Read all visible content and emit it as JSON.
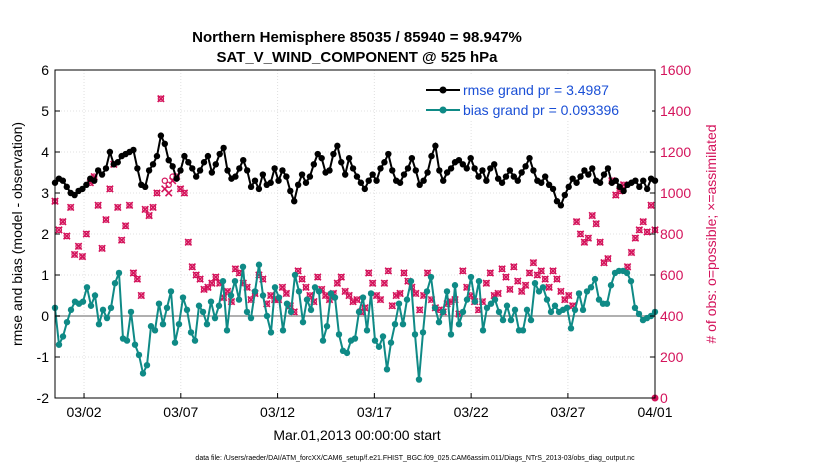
{
  "chart_data": {
    "type": "line",
    "title": "Northern Hemisphere 85035 / 85940 = 98.947%",
    "subtitle": "SAT_V_WIND_COMPONENT @ 525 hPa",
    "xlabel": "Mar.01,2013 00:00:00 start",
    "ylabel": "rmse and bias (model - observation)",
    "y2label": "# of obs: o=possible; ×=assimilated",
    "ylim": [
      -2,
      6
    ],
    "y2lim": [
      0,
      1600
    ],
    "xlim": [
      0,
      31
    ],
    "x_tick_labels": [
      "03/02",
      "03/07",
      "03/12",
      "03/17",
      "03/22",
      "03/27",
      "04/01"
    ],
    "x_tick_values": [
      1.5,
      6.5,
      11.5,
      16.5,
      21.5,
      26.5,
      31
    ],
    "y_ticks": [
      "-2",
      "-1",
      "0",
      "1",
      "2",
      "3",
      "4",
      "5",
      "6"
    ],
    "y2_ticks": [
      "0",
      "200",
      "400",
      "600",
      "800",
      "1000",
      "1200",
      "1400",
      "1600"
    ],
    "footnote": "data file: /Users/raeder/DAI/ATM_forcXX/CAM6_setup/f.e21.FHIST_BGC.f09_025.CAM6assim.011/Diags_NTrS_2013-03/obs_diag_output.nc",
    "series": [
      {
        "name": "rmse grand pr = 3.4987",
        "color": "#000000",
        "axis": "left",
        "values": [
          3.25,
          3.35,
          3.3,
          3.15,
          3.0,
          2.95,
          3.05,
          3.1,
          3.2,
          3.35,
          3.3,
          3.55,
          3.45,
          3.6,
          4.0,
          3.7,
          3.75,
          3.9,
          3.95,
          4.0,
          4.05,
          3.6,
          3.2,
          3.15,
          3.55,
          3.7,
          3.9,
          4.4,
          4.2,
          3.8,
          3.65,
          3.35,
          3.55,
          3.9,
          3.75,
          3.6,
          3.4,
          3.55,
          3.75,
          3.9,
          3.5,
          3.7,
          3.95,
          4.1,
          3.55,
          3.35,
          3.4,
          3.6,
          3.8,
          3.55,
          3.15,
          3.3,
          3.1,
          3.45,
          3.2,
          3.25,
          3.6,
          3.3,
          3.55,
          3.4,
          3.05,
          2.8,
          3.2,
          3.45,
          3.25,
          3.4,
          3.7,
          3.95,
          3.85,
          3.5,
          3.55,
          3.95,
          4.15,
          3.75,
          3.45,
          3.85,
          3.6,
          3.4,
          3.25,
          3.1,
          3.3,
          3.45,
          3.3,
          3.6,
          3.75,
          3.95,
          3.55,
          3.3,
          3.25,
          3.45,
          3.6,
          3.85,
          3.55,
          3.2,
          3.3,
          3.5,
          3.9,
          4.15,
          3.55,
          3.3,
          3.5,
          3.6,
          3.75,
          3.8,
          3.7,
          3.6,
          3.85,
          3.6,
          3.4,
          3.55,
          3.3,
          3.6,
          3.7,
          3.35,
          3.25,
          3.4,
          3.55,
          3.4,
          3.3,
          3.5,
          3.65,
          3.85,
          3.55,
          3.3,
          3.25,
          3.4,
          3.2,
          3.1,
          2.8,
          2.7,
          2.95,
          3.15,
          3.35,
          3.25,
          3.4,
          3.55,
          3.45,
          3.6,
          3.3,
          3.25,
          3.45,
          3.6,
          3.25,
          3.3,
          3.15,
          3.05,
          3.2,
          3.25,
          3.3,
          3.15,
          3.3,
          3.1,
          3.35,
          3.3
        ]
      },
      {
        "name": "bias grand pr = 0.093396",
        "color": "#0f8a86",
        "axis": "left",
        "values": [
          0.2,
          -0.7,
          -0.5,
          -0.15,
          0.15,
          0.35,
          0.3,
          0.35,
          0.7,
          0.25,
          0.5,
          -0.2,
          0.15,
          -0.05,
          0.2,
          0.8,
          1.05,
          -0.55,
          -0.6,
          0.1,
          -0.7,
          -0.95,
          -1.4,
          -1.2,
          -0.25,
          -0.35,
          0.3,
          -0.2,
          0.2,
          0.6,
          -0.65,
          -0.2,
          0.45,
          0.15,
          -0.4,
          -0.6,
          0.25,
          0.1,
          -0.2,
          0.35,
          -0.05,
          0.25,
          0.85,
          -0.35,
          0.5,
          0.85,
          0.4,
          1.2,
          0.1,
          -0.05,
          0.6,
          1.25,
          0.5,
          0.0,
          -0.4,
          0.7,
          0.45,
          -0.35,
          0.3,
          0.1,
          1.0,
          0.6,
          -0.15,
          0.4,
          0.15,
          0.7,
          0.6,
          -0.6,
          -0.25,
          0.55,
          0.45,
          -0.45,
          -0.85,
          -0.9,
          -0.6,
          -0.55,
          0.1,
          0.45,
          -0.35,
          0.55,
          -0.6,
          -0.75,
          -0.5,
          -1.3,
          -0.65,
          -0.2,
          0.3,
          -0.2,
          0.4,
          0.85,
          -0.45,
          -1.55,
          -0.4,
          0.6,
          0.95,
          0.2,
          -0.15,
          0.1,
          0.6,
          -0.45,
          0.75,
          -0.2,
          0.1,
          0.4,
          0.95,
          0.35,
          0.85,
          -0.35,
          0.2,
          0.3,
          0.4,
          0.1,
          -0.1,
          0.25,
          -0.1,
          0.15,
          -0.35,
          -0.35,
          0.15,
          -0.1,
          0.8,
          0.6,
          0.7,
          0.4,
          0.1,
          0.25,
          0.1,
          0.15,
          0.2,
          -0.3,
          0.15,
          0.55,
          0.15,
          0.6,
          0.7,
          0.9,
          0.4,
          0.3,
          0.3,
          0.75,
          1.05,
          1.1,
          1.1,
          1.05,
          0.85,
          0.2,
          0.05,
          -0.1,
          -0.05,
          0.0,
          0.1
        ]
      }
    ],
    "obs_assimilated": {
      "name": "assimilated",
      "color": "#d4135b",
      "axis": "right",
      "values": [
        960,
        820,
        860,
        790,
        930,
        700,
        740,
        690,
        800,
        1050,
        1080,
        940,
        730,
        870,
        1020,
        1140,
        930,
        770,
        840,
        940,
        610,
        580,
        500,
        920,
        890,
        930,
        1000,
        1460,
        1020,
        1000,
        1060,
        1080,
        1020,
        1000,
        760,
        640,
        600,
        580,
        530,
        540,
        560,
        590,
        560,
        490,
        520,
        470,
        630,
        610,
        560,
        540,
        480,
        510,
        600,
        580,
        460,
        500,
        480,
        480,
        540,
        510,
        450,
        420,
        620,
        580,
        540,
        500,
        470,
        590,
        530,
        500,
        480,
        510,
        560,
        590,
        520,
        500,
        470,
        480,
        420,
        440,
        610,
        560,
        500,
        480,
        560,
        620,
        450,
        500,
        510,
        610,
        570,
        540,
        510,
        430,
        500,
        610,
        480,
        440,
        430,
        420,
        460,
        470,
        480,
        410,
        620,
        540,
        500,
        470,
        430,
        470,
        560,
        610,
        500,
        510,
        630,
        590,
        530,
        640,
        570,
        520,
        550,
        610,
        660,
        600,
        620,
        580,
        540,
        620,
        580,
        520,
        480,
        500,
        450,
        860,
        800,
        760,
        780,
        890,
        850,
        760,
        660,
        680,
        1060,
        990,
        1010,
        1040,
        640,
        710,
        780,
        820,
        860,
        810,
        940,
        820
      ]
    },
    "obs_possible": {
      "name": "possible",
      "color": "#d4135b",
      "axis": "right",
      "values": [
        960,
        820,
        860,
        790,
        930,
        700,
        740,
        690,
        800,
        1050,
        1080,
        940,
        730,
        870,
        1020,
        1140,
        930,
        770,
        840,
        940,
        610,
        580,
        500,
        920,
        890,
        930,
        1000,
        1460,
        1060,
        1040,
        1080,
        1080,
        1020,
        1000,
        760,
        640,
        600,
        580,
        530,
        540,
        560,
        590,
        560,
        490,
        520,
        470,
        630,
        610,
        560,
        540,
        480,
        510,
        600,
        580,
        460,
        500,
        480,
        480,
        540,
        510,
        450,
        420,
        620,
        580,
        540,
        500,
        470,
        590,
        530,
        500,
        480,
        510,
        560,
        590,
        520,
        500,
        470,
        480,
        420,
        440,
        610,
        560,
        500,
        480,
        560,
        620,
        450,
        500,
        510,
        610,
        570,
        540,
        510,
        430,
        500,
        610,
        480,
        440,
        430,
        420,
        460,
        470,
        480,
        410,
        620,
        540,
        500,
        470,
        430,
        470,
        560,
        610,
        500,
        510,
        630,
        590,
        530,
        640,
        570,
        520,
        550,
        610,
        660,
        600,
        620,
        580,
        540,
        620,
        580,
        520,
        480,
        500,
        450,
        860,
        800,
        760,
        780,
        890,
        850,
        760,
        660,
        680,
        1060,
        990,
        1010,
        1040,
        640,
        710,
        780,
        820,
        860,
        810,
        940,
        820
      ]
    },
    "reference_line_y": 0,
    "legend_position": "top-right"
  }
}
